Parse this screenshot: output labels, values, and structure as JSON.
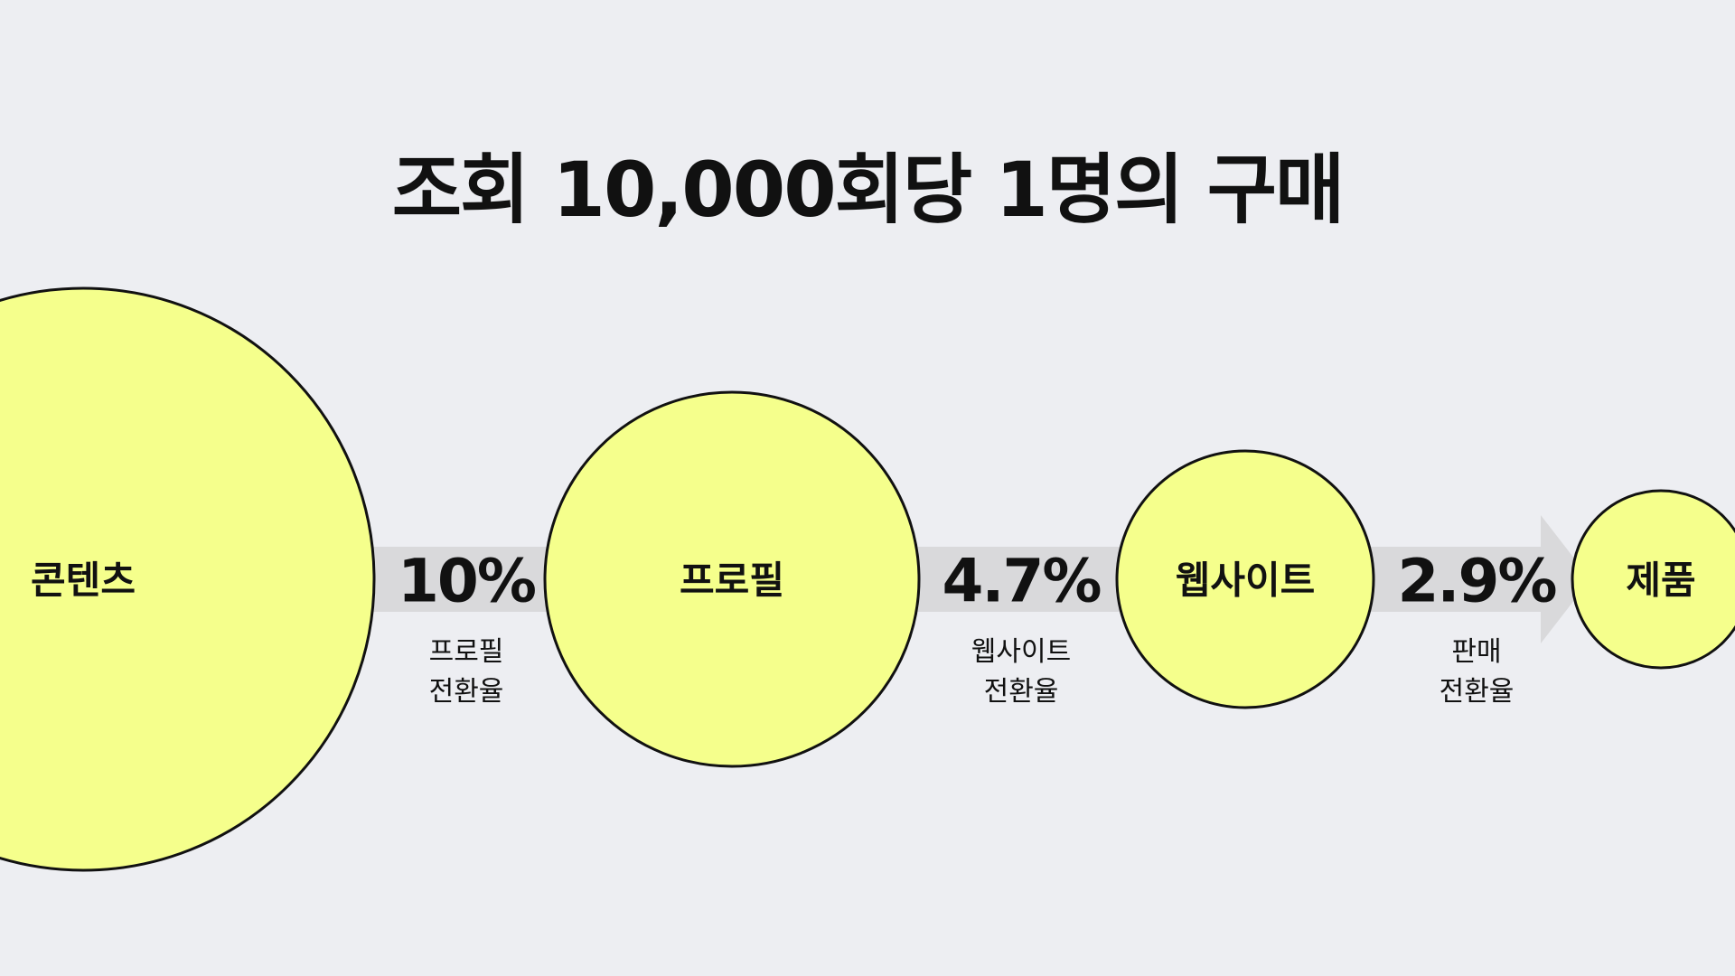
{
  "title": "조회 10,000회당 1명의 구매",
  "colors": {
    "background": "#EDEEF2",
    "circle_fill": "#F5FF8C",
    "circle_stroke": "#111111",
    "arrow_fill": "#D9D9DB",
    "text": "#111111"
  },
  "stages": [
    {
      "label": "콘텐츠"
    },
    {
      "label": "프로필"
    },
    {
      "label": "웹사이트"
    },
    {
      "label": "제품"
    }
  ],
  "conversions": [
    {
      "rate": "10%",
      "caption_line1": "프로필",
      "caption_line2": "전환율"
    },
    {
      "rate": "4.7%",
      "caption_line1": "웹사이트",
      "caption_line2": "전환율"
    },
    {
      "rate": "2.9%",
      "caption_line1": "판매",
      "caption_line2": "전환율"
    }
  ]
}
